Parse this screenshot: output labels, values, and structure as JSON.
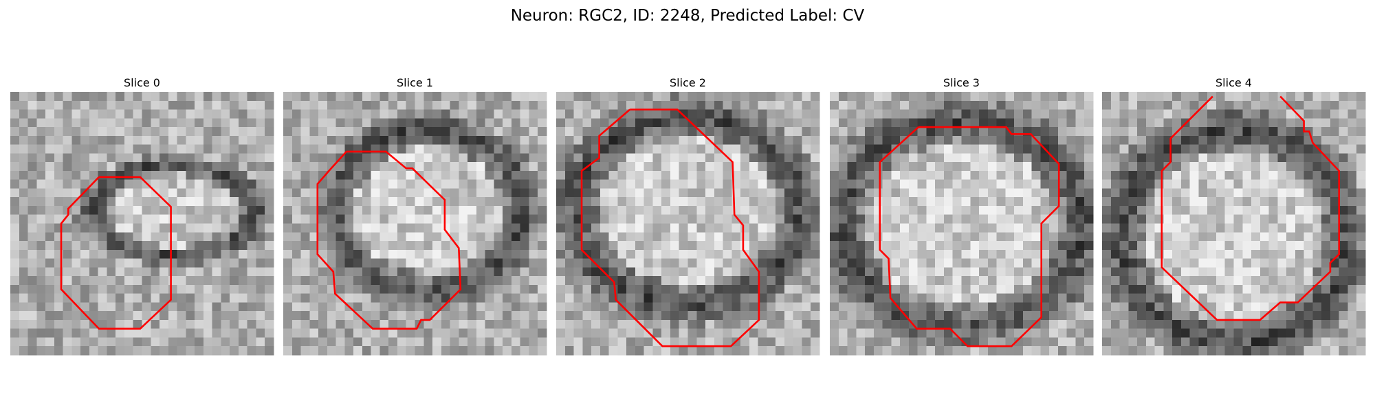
{
  "title": "Neuron: RGC2, ID: 2248, Predicted Label: CV",
  "panels": [
    {
      "title": "Slice 0"
    },
    {
      "title": "Slice 1"
    },
    {
      "title": "Slice 2"
    },
    {
      "title": "Slice 3"
    },
    {
      "title": "Slice 4"
    }
  ]
}
